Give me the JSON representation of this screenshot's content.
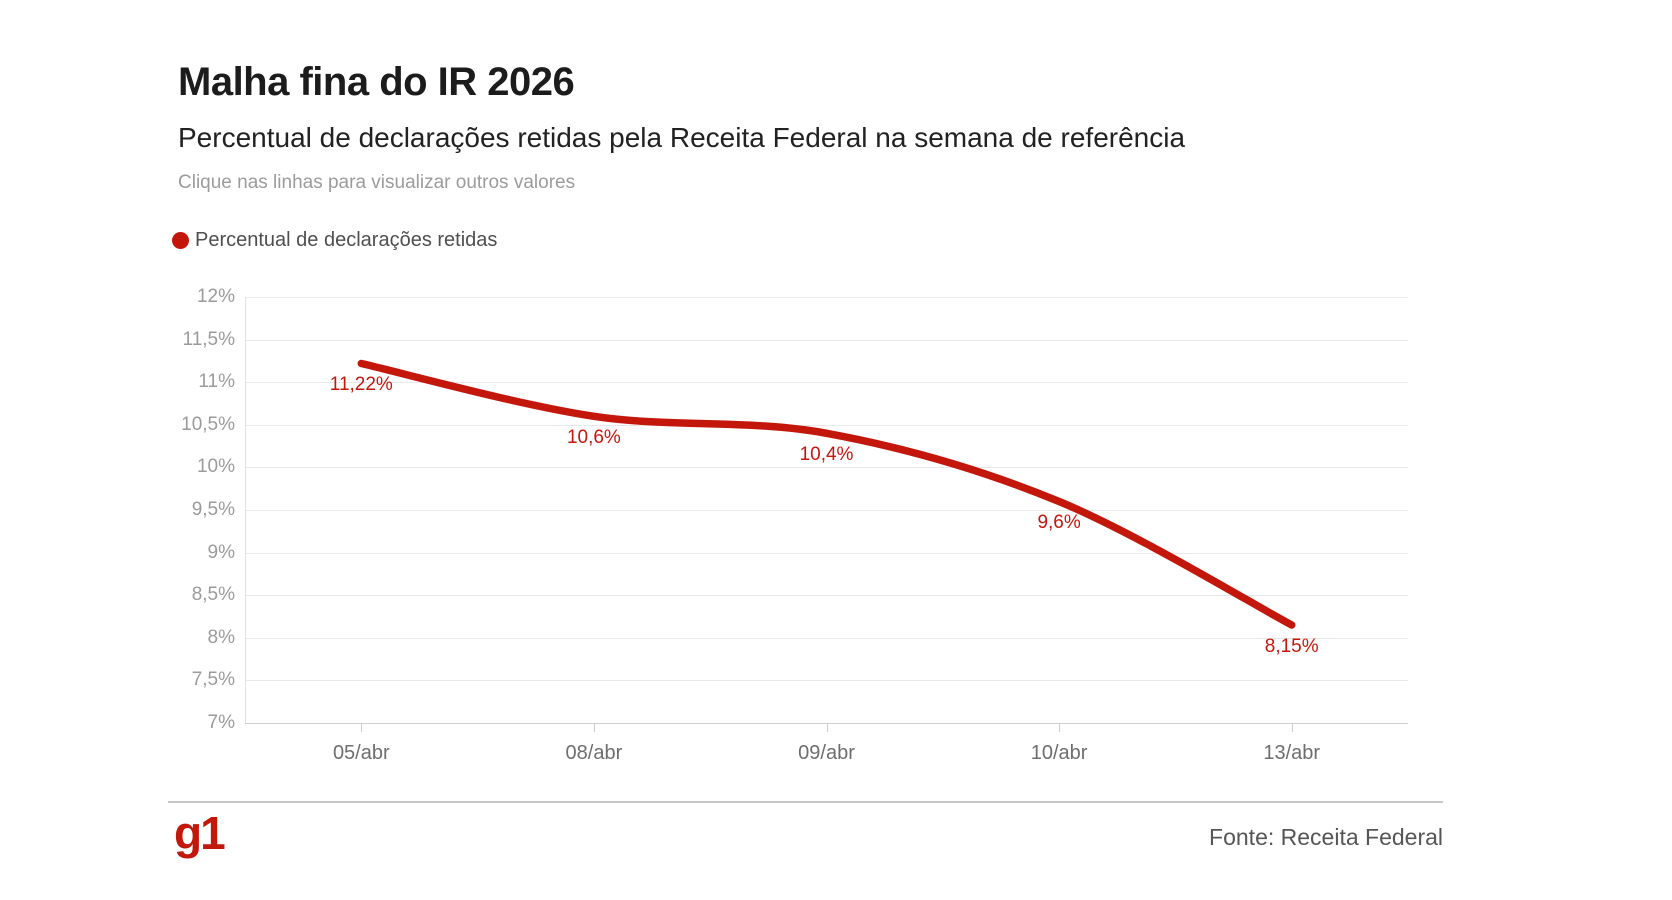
{
  "header": {
    "title": "Malha fina do IR 2026",
    "subtitle": "Percentual de declarações retidas pela Receita Federal na semana de referência",
    "hint": "Clique nas linhas para visualizar outros valores"
  },
  "legend": {
    "label": "Percentual de declarações retidas",
    "marker_color": "#c4170c"
  },
  "chart_data": {
    "type": "line",
    "title": "Malha fina do IR 2026",
    "subtitle": "Percentual de declarações retidas pela Receita Federal na semana de referência",
    "categories": [
      "05/abr",
      "08/abr",
      "09/abr",
      "10/abr",
      "13/abr"
    ],
    "series": [
      {
        "name": "Percentual de declarações retidas",
        "color": "#c4170c",
        "values": [
          11.22,
          10.6,
          10.4,
          9.6,
          8.15
        ],
        "value_labels": [
          "11,22%",
          "10,6%",
          "10,4%",
          "9,6%",
          "8,15%"
        ]
      }
    ],
    "xlabel": "",
    "ylabel": "",
    "ylim": [
      7,
      12
    ],
    "y_step": 0.5,
    "y_tick_labels": [
      "12%",
      "11,5%",
      "11%",
      "10,5%",
      "10%",
      "9,5%",
      "9%",
      "8,5%",
      "8%",
      "7,5%",
      "7%"
    ],
    "grid": true,
    "smooth": true,
    "legend_position": "top-left",
    "line_width": 7.5
  },
  "footer": {
    "logo_text": "g1",
    "source": "Fonte: Receita Federal"
  }
}
